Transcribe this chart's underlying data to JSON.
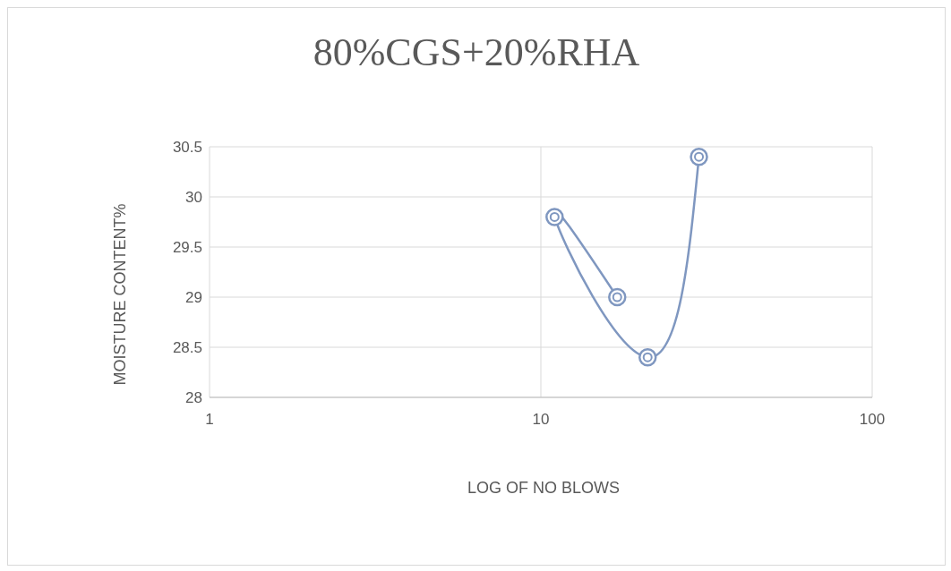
{
  "chart_data": {
    "type": "line",
    "title": "80%CGS+20%RHA",
    "xlabel": "LOG OF NO BLOWS",
    "ylabel": "MOISTURE CONTENT%",
    "series": [
      {
        "color": "#7f97c0",
        "x": [
          17,
          11,
          21,
          30
        ],
        "values": [
          29,
          29.8,
          28.4,
          30.4
        ]
      }
    ],
    "log": "x",
    "xlim": [
      1,
      100
    ],
    "xticks": [
      1,
      10,
      100
    ],
    "ylim": [
      28,
      30.5
    ],
    "yticks": [
      28,
      28.5,
      29,
      29.5,
      30,
      30.5
    ],
    "grid": true,
    "marker": "circle",
    "line_style": "solid"
  }
}
